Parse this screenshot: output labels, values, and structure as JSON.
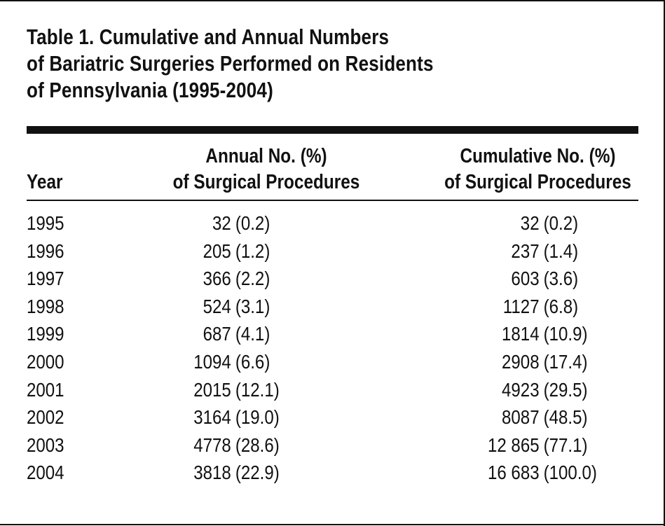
{
  "table": {
    "title_lines": [
      "Table 1. Cumulative and Annual Numbers",
      "of Bariatric Surgeries Performed on Residents",
      "of Pennsylvania (1995-2004)"
    ],
    "headers": {
      "year": "Year",
      "annual_line1": "Annual No. (%)",
      "annual_line2": "of Surgical Procedures",
      "cumulative_line1": "Cumulative No. (%)",
      "cumulative_line2": "of Surgical Procedures"
    },
    "rows": [
      {
        "year": "1995",
        "annual": "32",
        "annual_pct": "(0.2)",
        "cumulative": "32",
        "cumulative_pct": "(0.2)"
      },
      {
        "year": "1996",
        "annual": "205",
        "annual_pct": "(1.2)",
        "cumulative": "237",
        "cumulative_pct": "(1.4)"
      },
      {
        "year": "1997",
        "annual": "366",
        "annual_pct": "(2.2)",
        "cumulative": "603",
        "cumulative_pct": "(3.6)"
      },
      {
        "year": "1998",
        "annual": "524",
        "annual_pct": "(3.1)",
        "cumulative": "1127",
        "cumulative_pct": "(6.8)"
      },
      {
        "year": "1999",
        "annual": "687",
        "annual_pct": "(4.1)",
        "cumulative": "1814",
        "cumulative_pct": "(10.9)"
      },
      {
        "year": "2000",
        "annual": "1094",
        "annual_pct": "(6.6)",
        "cumulative": "2908",
        "cumulative_pct": "(17.4)"
      },
      {
        "year": "2001",
        "annual": "2015",
        "annual_pct": "(12.1)",
        "cumulative": "4923",
        "cumulative_pct": "(29.5)"
      },
      {
        "year": "2002",
        "annual": "3164",
        "annual_pct": "(19.0)",
        "cumulative": "8087",
        "cumulative_pct": "(48.5)"
      },
      {
        "year": "2003",
        "annual": "4778",
        "annual_pct": "(28.6)",
        "cumulative": "12 865",
        "cumulative_pct": "(77.1)"
      },
      {
        "year": "2004",
        "annual": "3818",
        "annual_pct": "(22.9)",
        "cumulative": "16 683",
        "cumulative_pct": "(100.0)"
      }
    ]
  }
}
